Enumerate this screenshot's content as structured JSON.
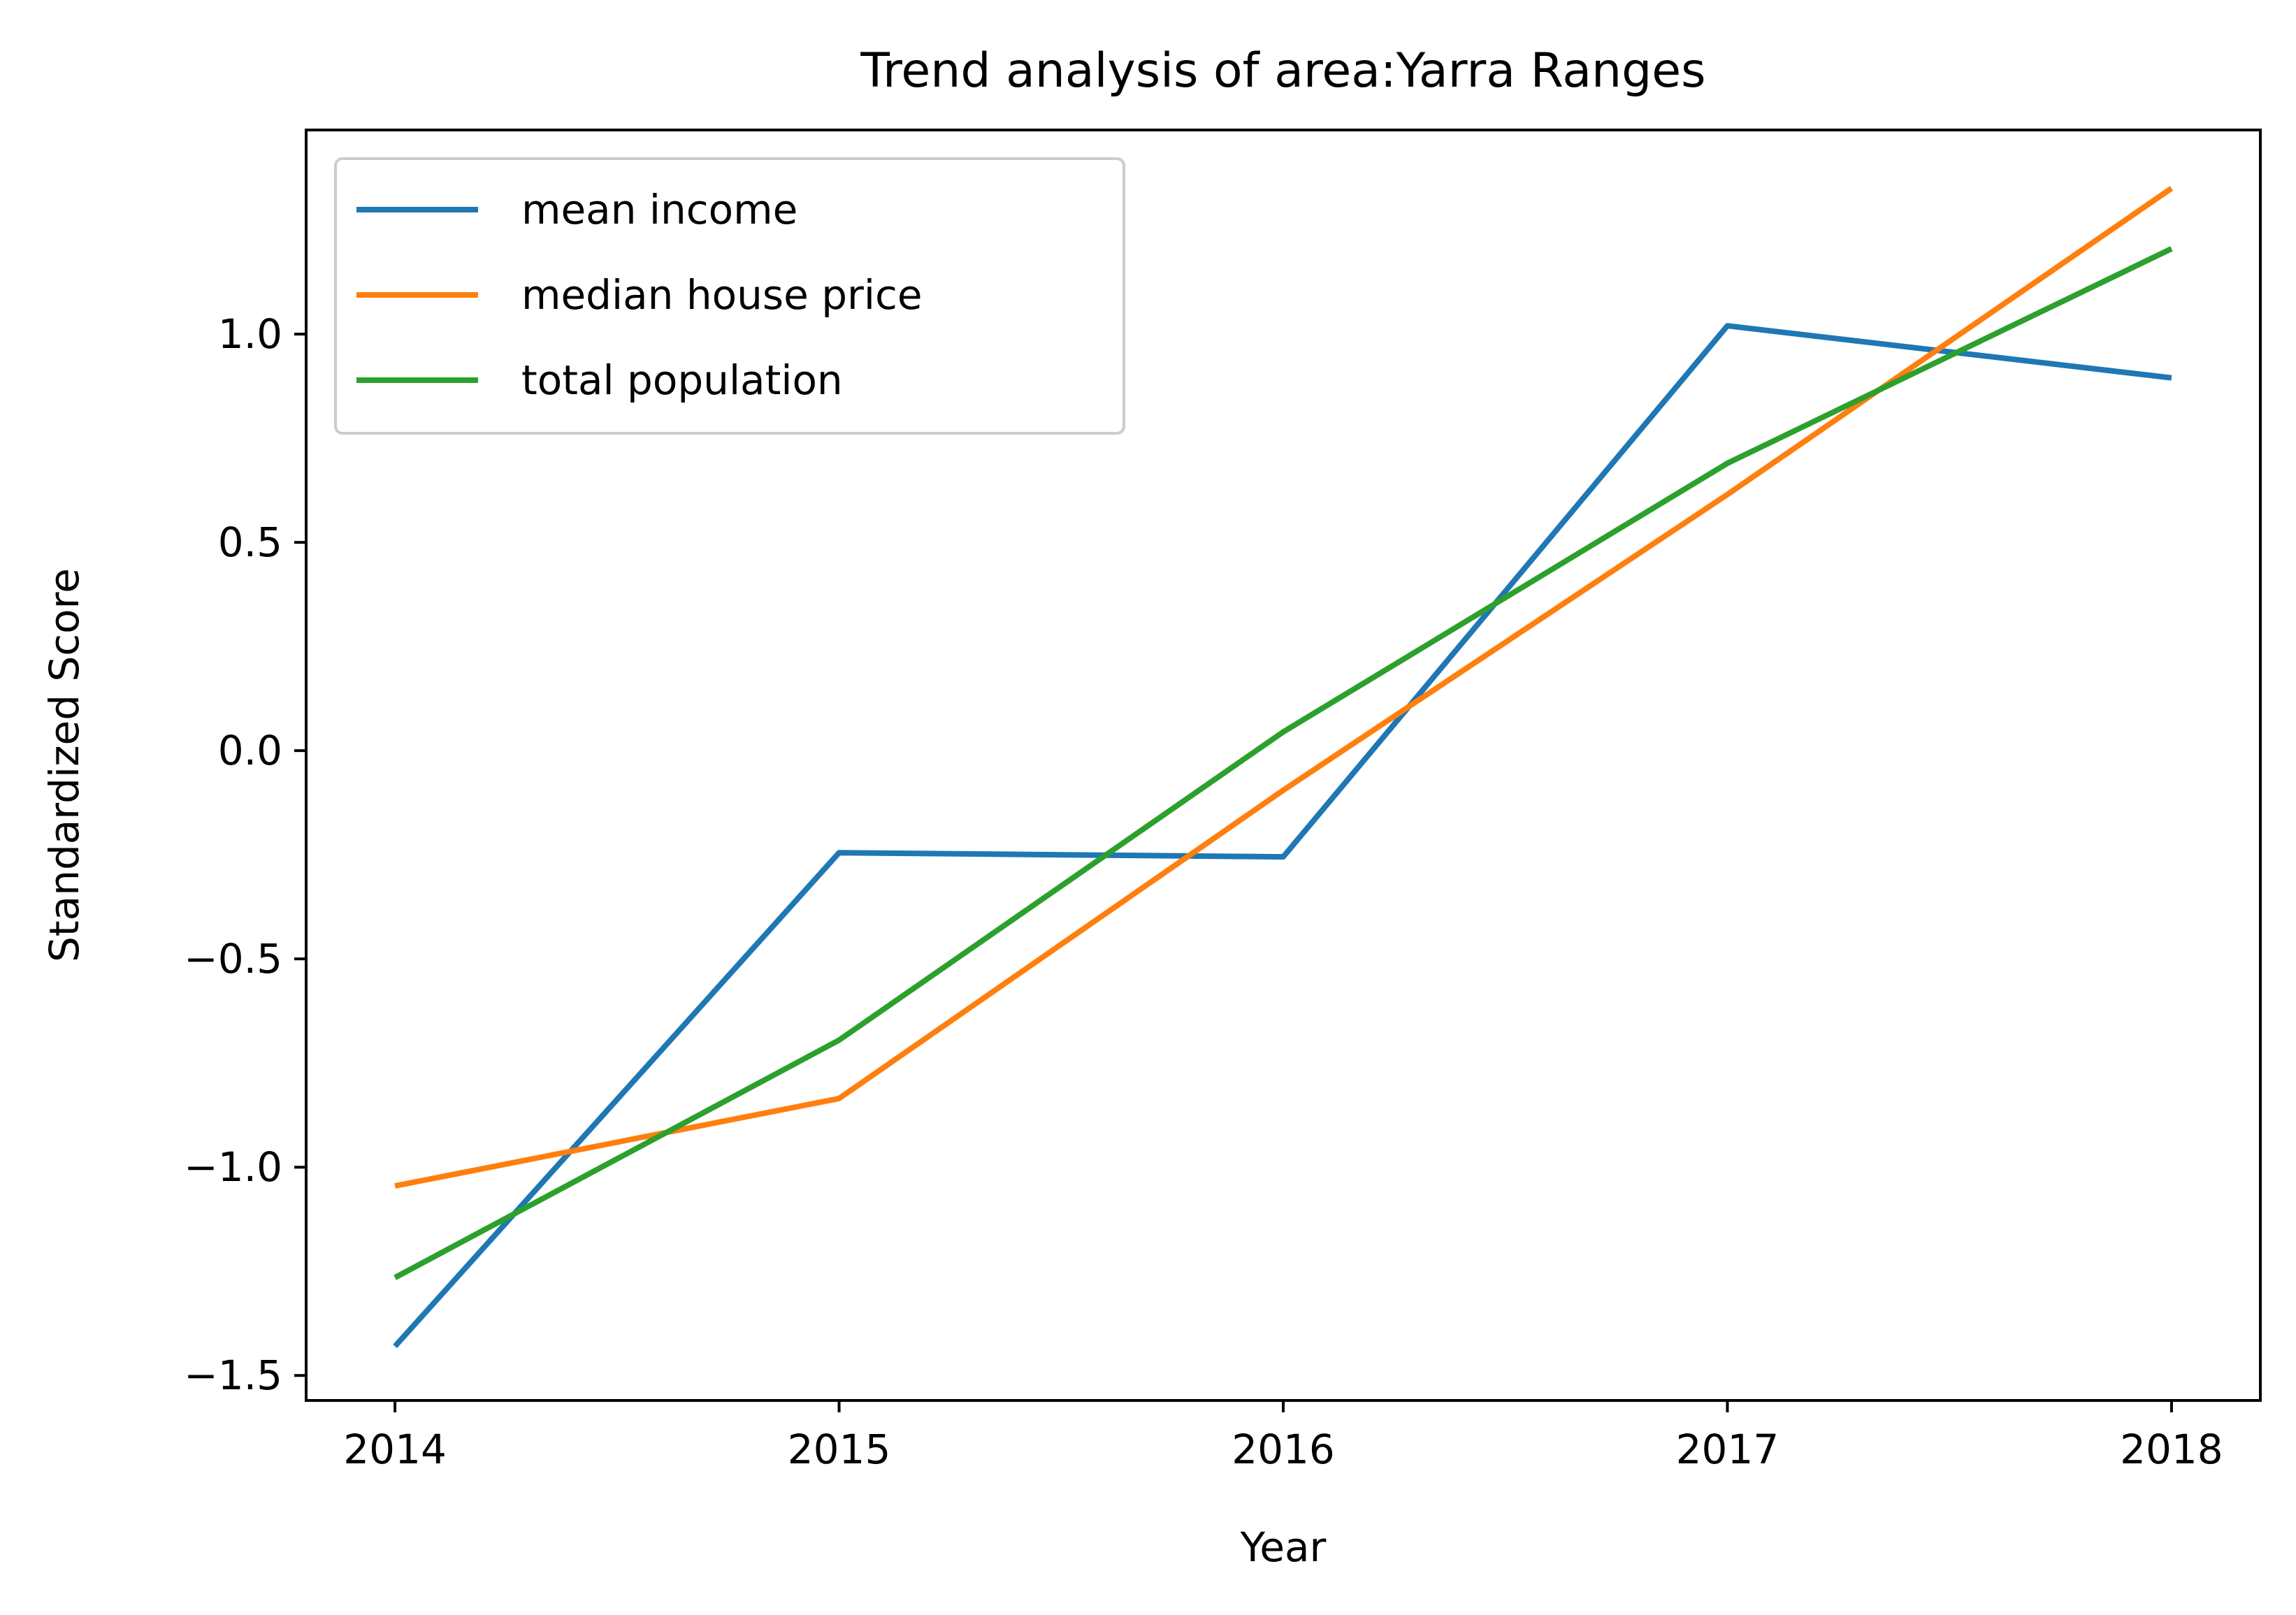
{
  "chart_data": {
    "type": "line",
    "title": "Trend analysis of area:Yarra Ranges",
    "xlabel": "Year",
    "ylabel": "Standardized Score",
    "x": [
      2014,
      2015,
      2016,
      2017,
      2018
    ],
    "xticks": [
      "2014",
      "2015",
      "2016",
      "2017",
      "2018"
    ],
    "yticks": [
      -1.5,
      -1.0,
      -0.5,
      0.0,
      0.5,
      1.0
    ],
    "ytick_labels": [
      "−1.5",
      "−1.0",
      "−0.5",
      "0.0",
      "0.5",
      "1.0"
    ],
    "xlim": [
      2013.8,
      2018.2
    ],
    "ylim": [
      -1.56,
      1.49
    ],
    "grid": false,
    "legend_position": "upper-left",
    "series": [
      {
        "name": "mean income",
        "color": "#1f77b4",
        "values": [
          -1.43,
          -0.245,
          -0.255,
          1.02,
          0.895
        ]
      },
      {
        "name": "median house price",
        "color": "#ff7f0e",
        "values": [
          -1.045,
          -0.835,
          -0.095,
          0.615,
          1.35
        ]
      },
      {
        "name": "total population",
        "color": "#2ca02c",
        "values": [
          -1.265,
          -0.695,
          0.045,
          0.69,
          1.205
        ]
      }
    ]
  }
}
